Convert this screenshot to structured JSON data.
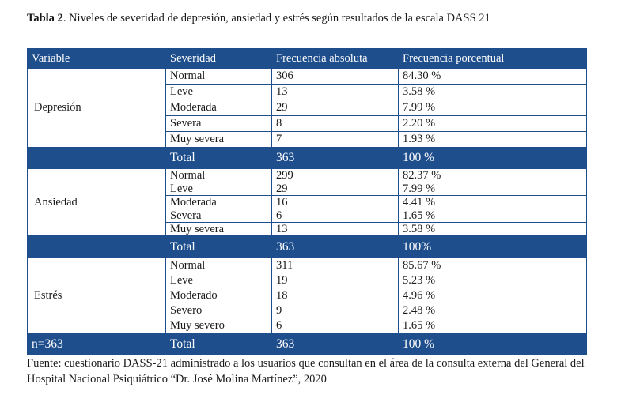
{
  "caption": {
    "label": "Tabla 2",
    "text": ". Niveles de severidad de depresión, ansiedad y estrés según resultados de la escala DASS 21"
  },
  "table": {
    "headers": [
      "Variable",
      "Severidad",
      "Frecuencia absoluta",
      "Frecuencia porcentual"
    ],
    "groups": [
      {
        "variable": "Depresión",
        "rows": [
          {
            "severity": "Normal",
            "abs": "306",
            "pct": "84.30 %"
          },
          {
            "severity": "Leve",
            "abs": "13",
            "pct": "3.58 %"
          },
          {
            "severity": "Moderada",
            "abs": "29",
            "pct": "7.99 %"
          },
          {
            "severity": "Severa",
            "abs": "8",
            "pct": "2.20 %"
          },
          {
            "severity": "Muy severa",
            "abs": "7",
            "pct": "1.93 %"
          }
        ],
        "total": {
          "label": "Total",
          "abs": "363",
          "pct": "100 %"
        }
      },
      {
        "variable": "Ansiedad",
        "rows": [
          {
            "severity": "Normal",
            "abs": "299",
            "pct": "82.37 %"
          },
          {
            "severity": "Leve",
            "abs": "29",
            "pct": "7.99 %"
          },
          {
            "severity": "Moderada",
            "abs": "16",
            "pct": "4.41 %"
          },
          {
            "severity": "Severa",
            "abs": "6",
            "pct": "1.65 %"
          },
          {
            "severity": "Muy severa",
            "abs": "13",
            "pct": "3.58 %"
          }
        ],
        "total": {
          "label": "Total",
          "abs": "363",
          "pct": "100%"
        }
      },
      {
        "variable": "Estrés",
        "rows": [
          {
            "severity": "Normal",
            "abs": "311",
            "pct": "85.67 %"
          },
          {
            "severity": "Leve",
            "abs": "19",
            "pct": "5.23 %"
          },
          {
            "severity": "Moderado",
            "abs": "18",
            "pct": "4.96 %"
          },
          {
            "severity": "Severo",
            "abs": "9",
            "pct": "2.48 %"
          },
          {
            "severity": "Muy severo",
            "abs": "6",
            "pct": "1.65 %"
          }
        ],
        "total": {
          "label": "Total",
          "abs": "363",
          "pct": "100 %",
          "n": "n=363"
        }
      }
    ]
  },
  "source": "Fuente: cuestionario DASS-21 administrado a los usuarios que consultan en el área de la consulta externa del General del Hospital Nacional Psiquiátrico “Dr. José Molina Martínez”, 2020"
}
